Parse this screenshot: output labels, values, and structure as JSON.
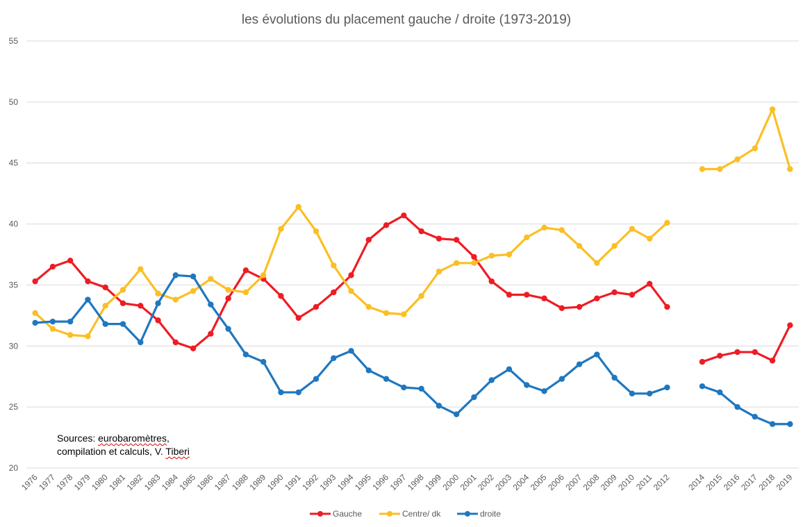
{
  "chart_data": {
    "type": "line",
    "title": "les évolutions du placement gauche / droite (1973-2019)",
    "xlabel": "",
    "ylabel": "",
    "ylim": [
      20,
      55
    ],
    "yticks": [
      20,
      25,
      30,
      35,
      40,
      45,
      50,
      55
    ],
    "grid": true,
    "legend_position": "bottom",
    "categories": [
      "1976",
      "1977",
      "1978",
      "1979",
      "1980",
      "1981",
      "1982",
      "1983",
      "1984",
      "1985",
      "1986",
      "1987",
      "1988",
      "1989",
      "1990",
      "1991",
      "1992",
      "1993",
      "1994",
      "1995",
      "1996",
      "1997",
      "1998",
      "1999",
      "2000",
      "2001",
      "2002",
      "2003",
      "2004",
      "2005",
      "2006",
      "2007",
      "2008",
      "2009",
      "2010",
      "2011",
      "2012",
      "",
      "2014",
      "2015",
      "2016",
      "2017",
      "2018",
      "2019"
    ],
    "series": [
      {
        "name": "Gauche",
        "color": "#ee1c24",
        "values": [
          35.3,
          36.5,
          37.0,
          35.3,
          34.8,
          33.5,
          33.3,
          32.1,
          30.3,
          29.8,
          31.0,
          33.9,
          36.2,
          35.5,
          34.1,
          32.3,
          33.2,
          34.4,
          35.8,
          38.7,
          39.9,
          40.7,
          39.4,
          38.8,
          38.7,
          37.3,
          35.3,
          34.2,
          34.2,
          33.9,
          33.1,
          33.2,
          33.9,
          34.4,
          34.2,
          35.1,
          33.2,
          null,
          28.7,
          29.2,
          29.5,
          29.5,
          28.8,
          31.7
        ]
      },
      {
        "name": "Centre/ dk",
        "color": "#fbbf24",
        "values": [
          32.7,
          31.4,
          30.9,
          30.8,
          33.3,
          34.6,
          36.3,
          34.3,
          33.8,
          34.5,
          35.5,
          34.6,
          34.4,
          35.8,
          39.6,
          41.4,
          39.4,
          36.6,
          34.5,
          33.2,
          32.7,
          32.6,
          34.1,
          36.1,
          36.8,
          36.8,
          37.4,
          37.5,
          38.9,
          39.7,
          39.5,
          38.2,
          36.8,
          38.2,
          39.6,
          38.8,
          40.1,
          null,
          44.5,
          44.5,
          45.3,
          46.2,
          49.4,
          44.5
        ]
      },
      {
        "name": "droite",
        "color": "#1f77c0",
        "values": [
          31.9,
          32.0,
          32.0,
          33.8,
          31.8,
          31.8,
          30.3,
          33.5,
          35.8,
          35.7,
          33.4,
          31.4,
          29.3,
          28.7,
          26.2,
          26.2,
          27.3,
          29.0,
          29.6,
          28.0,
          27.3,
          26.6,
          26.5,
          25.1,
          24.4,
          25.8,
          27.2,
          28.1,
          26.8,
          26.3,
          27.3,
          28.5,
          29.3,
          27.4,
          26.1,
          26.1,
          26.6,
          null,
          26.7,
          26.2,
          25.0,
          24.2,
          23.6,
          23.6
        ]
      }
    ]
  },
  "annotation": {
    "line1_prefix": "Sources: ",
    "line1_squiggle": "eurobaromètres",
    "line1_suffix": ",",
    "line2_prefix": "compilation et calculs, V. ",
    "line2_squiggle": "Tiberi"
  }
}
